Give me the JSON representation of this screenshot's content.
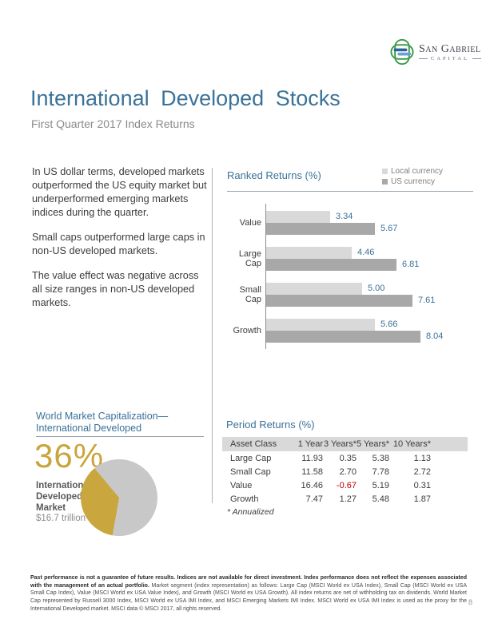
{
  "logo": {
    "company": "San Gabriel",
    "tagline": "CAPITAL",
    "mark_green": "#3c9b47",
    "mark_blue_dark": "#28649c",
    "mark_blue_light": "#6f9fd0"
  },
  "header": {
    "title": "International Developed Stocks",
    "subtitle": "First Quarter 2017 Index Returns"
  },
  "commentary": {
    "paragraphs": [
      "In US dollar terms, developed markets outperformed the US equity market but underperformed emerging markets indices during the quarter.",
      "Small caps outperformed large caps in non-US developed markets.",
      "The value effect was negative across all size ranges in non-US developed markets."
    ]
  },
  "chart_data": [
    {
      "type": "bar",
      "orientation": "horizontal",
      "title": "Ranked Returns (%)",
      "categories": [
        "Value",
        "Large Cap",
        "Small Cap",
        "Growth"
      ],
      "series": [
        {
          "name": "Local currency",
          "color": "#d9d9d9",
          "values": [
            3.34,
            4.46,
            5.0,
            5.66
          ],
          "labels": [
            "3.34",
            "4.46",
            "5.00",
            "5.66"
          ]
        },
        {
          "name": "US currency",
          "color": "#a8a8a8",
          "values": [
            5.67,
            6.81,
            7.61,
            8.04
          ],
          "labels": [
            "5.67",
            "6.81",
            "7.61",
            "8.04"
          ]
        }
      ],
      "xlim": [
        0,
        9
      ],
      "legend_position": "top-right",
      "value_label_color": "#3a7298",
      "grid": false
    },
    {
      "type": "pie",
      "title": "World Market Capitalization— International Developed",
      "slices": [
        {
          "label": "International Developed Market",
          "value": 36,
          "color": "#c9a73e"
        },
        {
          "label": "",
          "value": 64,
          "color": "#c8c8c8"
        }
      ],
      "gold_start_deg": 190,
      "gold_end_deg": 320,
      "callout": {
        "pct": "36%",
        "label_lines": [
          "International",
          "Developed",
          "Market"
        ],
        "value": "$16.7 trillion"
      }
    },
    {
      "type": "table",
      "title": "Period Returns (%)",
      "columns": [
        "Asset Class",
        "1 Year",
        "3 Years*",
        "5 Years*",
        "10 Years*"
      ],
      "rows": [
        [
          "Large Cap",
          "11.93",
          "0.35",
          "5.38",
          "1.13"
        ],
        [
          "Small Cap",
          "11.58",
          "2.70",
          "7.78",
          "2.72"
        ],
        [
          "Value",
          "16.46",
          "-0.67",
          "5.19",
          "0.31"
        ],
        [
          "Growth",
          "7.47",
          "1.27",
          "5.48",
          "1.87"
        ]
      ],
      "negative_color": "#c00000",
      "footnote": "* Annualized"
    }
  ],
  "world_market_cap": {
    "title_line1": "World Market Capitalization—",
    "title_line2": "International Developed"
  },
  "footer": {
    "bold": "Past performance is not a guarantee of future results. Indices are not available for direct investment. Index performance does not reflect the expenses associated with the management of an actual portfolio.",
    "regular": " Market segment (index representation) as follows: Large Cap (MSCI World ex USA Index), Small Cap (MSCI World ex USA Small Cap Index), Value (MSCI World ex USA Value Index), and Growth (MSCI World ex USA Growth). All index returns are net of withholding tax on dividends. World Market Cap represented by Russell 3000 Index, MSCI World ex USA IMI Index, and MSCI Emerging Markets IMI Index. MSCI World ex USA IMI Index is used as the proxy for the International Developed market. MSCI data © MSCI 2017, all rights reserved.",
    "page_number": "8"
  }
}
